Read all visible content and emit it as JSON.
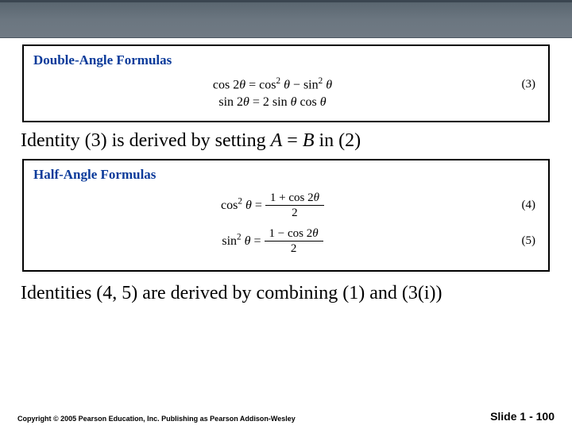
{
  "header": {
    "band_gradient_top": "#5a6670",
    "band_gradient_bottom": "#707a84"
  },
  "box1": {
    "title": "Double-Angle Formulas",
    "title_color": "#0a3a9a",
    "eq1_html": "cos 2<span class='ital theta'>θ</span>&nbsp;=&nbsp;cos<span class='sup'>2</span> <span class='ital theta'>θ</span>&nbsp;&minus;&nbsp;sin<span class='sup'>2</span> <span class='ital theta'>θ</span>",
    "eq1_num": "(3)",
    "eq2_html": "sin 2<span class='ital theta'>θ</span>&nbsp;=&nbsp;2 sin <span class='ital theta'>θ</span> cos <span class='ital theta'>θ</span>",
    "eq2_num": ""
  },
  "text1_html": "Identity (3) is derived by setting <span class='ital'>A</span> = <span class='ital'>B</span> in (2)",
  "box2": {
    "title": "Half-Angle Formulas",
    "title_color": "#0a3a9a",
    "eq1_lhs": "cos<span class='sup'>2</span> <span class='ital theta'>θ</span>&nbsp;=&nbsp;",
    "eq1_num_top": "1 + cos 2<span class='ital theta'>θ</span>",
    "eq1_num_bot": "2",
    "eq1_tag": "(4)",
    "eq2_lhs": "sin<span class='sup'>2</span> <span class='ital theta'>θ</span>&nbsp;=&nbsp;",
    "eq2_num_top": "1 &minus; cos 2<span class='ital theta'>θ</span>",
    "eq2_num_bot": "2",
    "eq2_tag": "(5)"
  },
  "text2": "Identities (4, 5) are derived by combining (1) and (3(i))",
  "footer": {
    "copyright": "Copyright © 2005 Pearson Education, Inc. Publishing as Pearson Addison-Wesley",
    "slide": "Slide 1 - 100"
  }
}
